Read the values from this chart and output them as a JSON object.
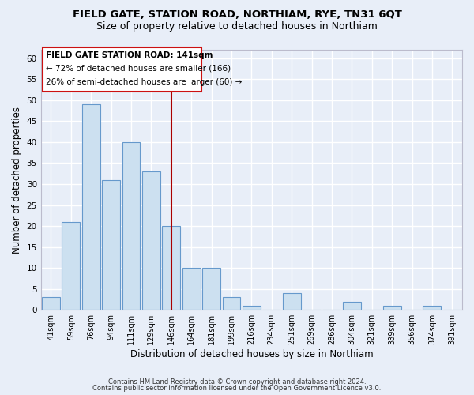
{
  "title": "FIELD GATE, STATION ROAD, NORTHIAM, RYE, TN31 6QT",
  "subtitle": "Size of property relative to detached houses in Northiam",
  "xlabel": "Distribution of detached houses by size in Northiam",
  "ylabel": "Number of detached properties",
  "bar_labels": [
    "41sqm",
    "59sqm",
    "76sqm",
    "94sqm",
    "111sqm",
    "129sqm",
    "146sqm",
    "164sqm",
    "181sqm",
    "199sqm",
    "216sqm",
    "234sqm",
    "251sqm",
    "269sqm",
    "286sqm",
    "304sqm",
    "321sqm",
    "339sqm",
    "356sqm",
    "374sqm",
    "391sqm"
  ],
  "bar_values": [
    3,
    21,
    49,
    31,
    40,
    33,
    20,
    10,
    10,
    3,
    1,
    0,
    4,
    0,
    0,
    2,
    0,
    1,
    0,
    1,
    0
  ],
  "bar_color": "#cce0f0",
  "bar_edge_color": "#6699cc",
  "ylim": [
    0,
    62
  ],
  "yticks": [
    0,
    5,
    10,
    15,
    20,
    25,
    30,
    35,
    40,
    45,
    50,
    55,
    60
  ],
  "vline_x": 6,
  "vline_color": "#aa0000",
  "annotation_title": "FIELD GATE STATION ROAD: 141sqm",
  "annotation_line1": "← 72% of detached houses are smaller (166)",
  "annotation_line2": "26% of semi-detached houses are larger (60) →",
  "footer1": "Contains HM Land Registry data © Crown copyright and database right 2024.",
  "footer2": "Contains public sector information licensed under the Open Government Licence v3.0.",
  "bg_color": "#e8eef8",
  "plot_bg_color": "#e8eef8",
  "grid_color": "#ffffff",
  "title_fontsize": 9.5,
  "subtitle_fontsize": 9,
  "xlabel_fontsize": 8.5,
  "ylabel_fontsize": 8.5
}
